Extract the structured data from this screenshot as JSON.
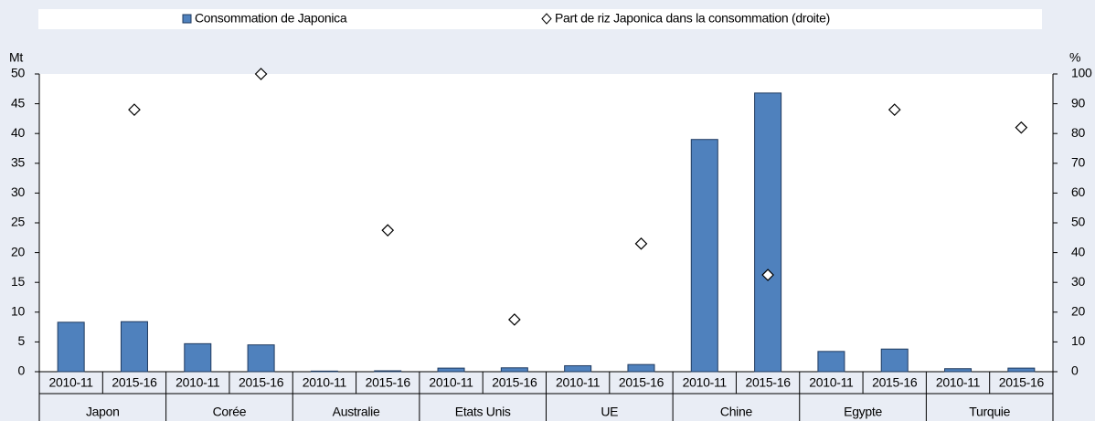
{
  "chart_data": {
    "type": "bar",
    "y_label": "Mt",
    "y2_label": "%",
    "categories": [
      "2010-11",
      "2015-16",
      "2010-11",
      "2015-16",
      "2010-11",
      "2015-16",
      "2010-11",
      "2015-16",
      "2010-11",
      "2015-16",
      "2010-11",
      "2015-16",
      "2010-11",
      "2015-16",
      "2010-11",
      "2015-16"
    ],
    "groups": [
      "Japon",
      "Corée",
      "Australie",
      "Etats Unis",
      "UE",
      "Chine",
      "Egypte",
      "Turquie"
    ],
    "ylim": [
      0,
      50
    ],
    "yticks": [
      0,
      5,
      10,
      15,
      20,
      25,
      30,
      35,
      40,
      45,
      50
    ],
    "y2lim": [
      0,
      100
    ],
    "y2ticks": [
      0,
      10,
      20,
      30,
      40,
      50,
      60,
      70,
      80,
      90,
      100
    ],
    "series": [
      {
        "name": "Consommation de Japonica",
        "type": "bar",
        "color": "#4f81bd",
        "values": [
          8.3,
          8.4,
          4.7,
          4.5,
          0.1,
          0.15,
          0.6,
          0.65,
          1.0,
          1.2,
          39.0,
          46.8,
          3.4,
          3.8,
          0.5,
          0.6
        ]
      },
      {
        "name": "Part de riz Japonica dans la consommation (droite)",
        "type": "scatter",
        "axis": "y2",
        "color": "#000000",
        "values": [
          null,
          88,
          null,
          100,
          null,
          47.5,
          null,
          17.5,
          null,
          43,
          null,
          32.5,
          null,
          88,
          null,
          82
        ]
      }
    ]
  }
}
